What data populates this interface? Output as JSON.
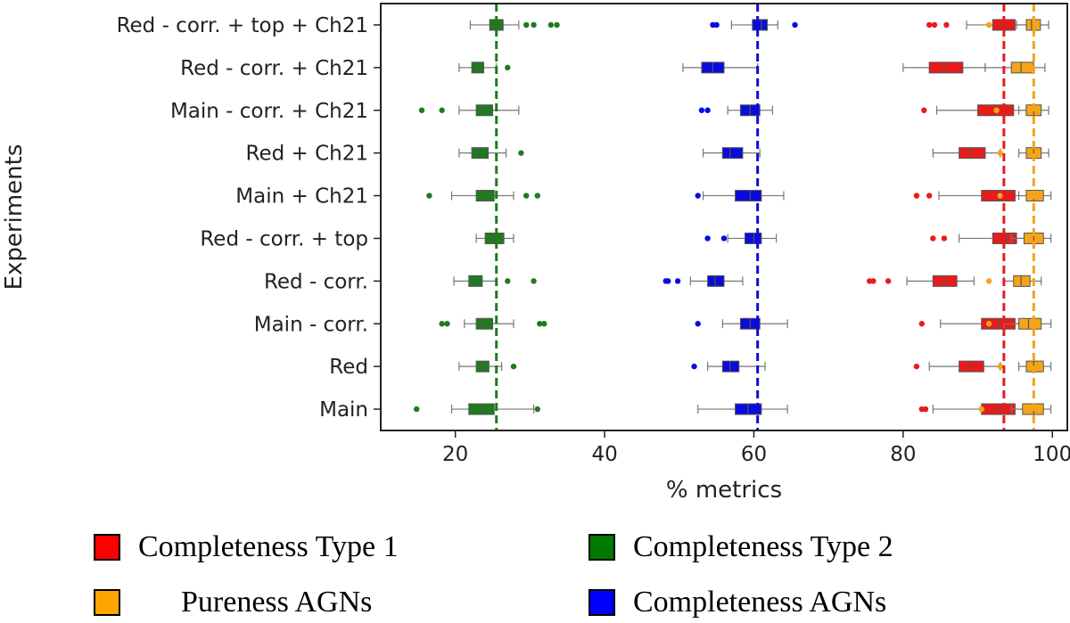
{
  "chart_data": {
    "type": "boxplot-horizontal",
    "xlabel": "% metrics",
    "ylabel": "Experiments",
    "xlim": [
      10,
      102
    ],
    "xticks": [
      20,
      40,
      60,
      80,
      100
    ],
    "categories": [
      "Red - corr. + top + Ch21",
      "Red - corr. + Ch21",
      "Main - corr. + Ch21",
      "Red + Ch21",
      "Main + Ch21",
      "Red - corr. + top",
      "Red - corr.",
      "Main - corr.",
      "Red",
      "Main"
    ],
    "series": [
      {
        "name": "Completeness Type 2",
        "color": "#1e7b1e",
        "reference": 25.5,
        "boxes": [
          {
            "min": 22,
            "q1": 24.6,
            "median": 25.4,
            "q3": 26.4,
            "max": 28.5,
            "outliers": [
              29.5,
              30.5,
              32.8,
              33.6
            ]
          },
          {
            "min": 20.5,
            "q1": 22.2,
            "median": 23,
            "q3": 23.8,
            "max": 25.5,
            "outliers": [
              27
            ]
          },
          {
            "min": 20.5,
            "q1": 22.8,
            "median": 23.8,
            "q3": 25,
            "max": 28.5,
            "outliers": [
              15.5,
              18.2
            ]
          },
          {
            "min": 20.5,
            "q1": 22.2,
            "median": 23.2,
            "q3": 24.4,
            "max": 26.8,
            "outliers": [
              28.8
            ]
          },
          {
            "min": 19.5,
            "q1": 22.8,
            "median": 24,
            "q3": 25.2,
            "max": 27.8,
            "outliers": [
              16.5,
              29.5,
              31
            ]
          },
          {
            "min": 22.8,
            "q1": 24,
            "median": 25.2,
            "q3": 26.5,
            "max": 27.8,
            "outliers": []
          },
          {
            "min": 19.8,
            "q1": 21.8,
            "median": 22.6,
            "q3": 23.6,
            "max": 25.5,
            "outliers": [
              27,
              30.5
            ]
          },
          {
            "min": 21.2,
            "q1": 22.8,
            "median": 23.8,
            "q3": 25,
            "max": 27.8,
            "outliers": [
              18.2,
              18.9,
              31.3,
              31.9
            ]
          },
          {
            "min": 20.5,
            "q1": 22.8,
            "median": 23.6,
            "q3": 24.5,
            "max": 26.2,
            "outliers": [
              27.8
            ]
          },
          {
            "min": 19.5,
            "q1": 21.8,
            "median": 23.5,
            "q3": 25.2,
            "max": 30.5,
            "outliers": [
              14.8,
              31
            ]
          }
        ]
      },
      {
        "name": "Completeness AGNs",
        "color": "#0b0bdc",
        "reference": 60.5,
        "boxes": [
          {
            "min": 57,
            "q1": 59.8,
            "median": 61,
            "q3": 61.8,
            "max": 63.2,
            "outliers": [
              54.5,
              55,
              65.5
            ]
          },
          {
            "min": 50.5,
            "q1": 53,
            "median": 54.5,
            "q3": 56,
            "max": 60.5,
            "outliers": []
          },
          {
            "min": 56.5,
            "q1": 58.2,
            "median": 59.5,
            "q3": 60.8,
            "max": 62.5,
            "outliers": [
              53,
              53.8
            ]
          },
          {
            "min": 53.2,
            "q1": 55.8,
            "median": 56.8,
            "q3": 58.5,
            "max": 60.8,
            "outliers": []
          },
          {
            "min": 53.2,
            "q1": 57.5,
            "median": 59.5,
            "q3": 61,
            "max": 64,
            "outliers": [
              52.5
            ]
          },
          {
            "min": 56.5,
            "q1": 58.8,
            "median": 60,
            "q3": 61,
            "max": 63,
            "outliers": [
              53.8,
              56
            ]
          },
          {
            "min": 51.5,
            "q1": 53.8,
            "median": 54.8,
            "q3": 56,
            "max": 58.5,
            "outliers": [
              48.2,
              48.5,
              49.8
            ]
          },
          {
            "min": 55.8,
            "q1": 58.2,
            "median": 59.5,
            "q3": 60.8,
            "max": 64.5,
            "outliers": [
              52.5
            ]
          },
          {
            "min": 53.8,
            "q1": 55.8,
            "median": 56.8,
            "q3": 58,
            "max": 61.5,
            "outliers": [
              52
            ]
          },
          {
            "min": 52.5,
            "q1": 57.5,
            "median": 59.2,
            "q3": 61,
            "max": 64.5,
            "outliers": []
          }
        ]
      },
      {
        "name": "Completeness Type 1",
        "color": "#e81b1b",
        "reference": 93.5,
        "boxes": [
          {
            "min": 88.5,
            "q1": 92,
            "median": 93.5,
            "q3": 95,
            "max": 97,
            "outliers": [
              83.5,
              84.2,
              85.8
            ]
          },
          {
            "min": 80,
            "q1": 83.5,
            "median": 85.5,
            "q3": 88,
            "max": 91,
            "outliers": []
          },
          {
            "min": 84.5,
            "q1": 90,
            "median": 92.5,
            "q3": 94.8,
            "max": 96.5,
            "outliers": [
              82.8
            ]
          },
          {
            "min": 84,
            "q1": 87.5,
            "median": 89,
            "q3": 91,
            "max": 93,
            "outliers": []
          },
          {
            "min": 84.8,
            "q1": 90.5,
            "median": 92.8,
            "q3": 95,
            "max": 97,
            "outliers": [
              81.8,
              83.5
            ]
          },
          {
            "min": 87.5,
            "q1": 92,
            "median": 93.8,
            "q3": 95.2,
            "max": 97.5,
            "outliers": [
              84,
              85.5
            ]
          },
          {
            "min": 80.5,
            "q1": 84,
            "median": 85.5,
            "q3": 87.2,
            "max": 89.5,
            "outliers": [
              75.5,
              76,
              78
            ]
          },
          {
            "min": 85,
            "q1": 90.5,
            "median": 92.8,
            "q3": 95,
            "max": 97.5,
            "outliers": [
              82.5
            ]
          },
          {
            "min": 83.5,
            "q1": 87.5,
            "median": 89,
            "q3": 90.8,
            "max": 93,
            "outliers": [
              81.8
            ]
          },
          {
            "min": 84,
            "q1": 90.5,
            "median": 93,
            "q3": 95,
            "max": 97,
            "outliers": [
              82.5,
              83
            ]
          }
        ]
      },
      {
        "name": "Pureness AGNs",
        "color": "#f5a418",
        "reference": 97.5,
        "boxes": [
          {
            "min": 95.2,
            "q1": 96.5,
            "median": 97.2,
            "q3": 98.4,
            "max": 99.5,
            "outliers": [
              91.5
            ]
          },
          {
            "min": 91,
            "q1": 94.5,
            "median": 95.8,
            "q3": 97.5,
            "max": 99,
            "outliers": []
          },
          {
            "min": 95.5,
            "q1": 96.5,
            "median": 97.5,
            "q3": 98.5,
            "max": 99.5,
            "outliers": [
              92.5
            ]
          },
          {
            "min": 95.5,
            "q1": 96.5,
            "median": 97.5,
            "q3": 98.5,
            "max": 99.5,
            "outliers": [
              93
            ]
          },
          {
            "min": 95.5,
            "q1": 96.5,
            "median": 97.5,
            "q3": 98.8,
            "max": 99.8,
            "outliers": [
              93
            ]
          },
          {
            "min": 94.5,
            "q1": 96.2,
            "median": 97.5,
            "q3": 98.8,
            "max": 99.8,
            "outliers": []
          },
          {
            "min": 93.5,
            "q1": 94.8,
            "median": 95.8,
            "q3": 97,
            "max": 98.5,
            "outliers": [
              91.5
            ]
          },
          {
            "min": 93.5,
            "q1": 95.5,
            "median": 96.8,
            "q3": 98.5,
            "max": 99.8,
            "outliers": [
              91.5
            ]
          },
          {
            "min": 95.5,
            "q1": 96.5,
            "median": 97.5,
            "q3": 98.8,
            "max": 99.8,
            "outliers": [
              93
            ]
          },
          {
            "min": 94.5,
            "q1": 96,
            "median": 97.5,
            "q3": 98.8,
            "max": 99.8,
            "outliers": [
              90.5
            ]
          }
        ]
      }
    ],
    "legend": {
      "items": [
        {
          "label": "Completeness Type 1",
          "color": "#ff0000"
        },
        {
          "label": "Completeness Type 2",
          "color": "#007a00"
        },
        {
          "label": "Pureness AGNs",
          "color": "#ffa500"
        },
        {
          "label": "Completeness AGNs",
          "color": "#0000ff"
        }
      ]
    }
  }
}
